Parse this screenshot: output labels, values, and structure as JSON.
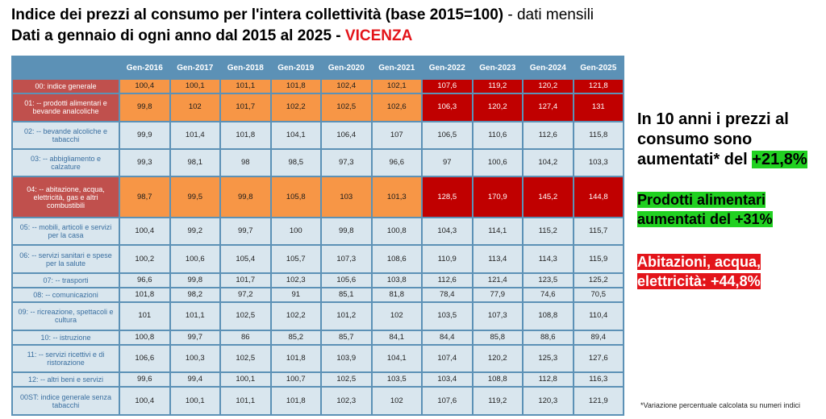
{
  "title": {
    "line1_main": "Indice dei prezzi al consumo per l'intera collettività (base 2015=100)",
    "line1_suffix": " - dati mensili",
    "line2_main": "Dati a gennaio di ogni anno dal 2015 al 2025 - ",
    "line2_city": "VICENZA"
  },
  "chart_data": {
    "type": "table",
    "columns": [
      "Gen-2016",
      "Gen-2017",
      "Gen-2018",
      "Gen-2019",
      "Gen-2020",
      "Gen-2021",
      "Gen-2022",
      "Gen-2023",
      "Gen-2024",
      "Gen-2025"
    ],
    "rows": [
      {
        "label": "00: indice generale",
        "values": [
          "100,4",
          "100,1",
          "101,1",
          "101,8",
          "102,4",
          "102,1",
          "107,6",
          "119,2",
          "120,2",
          "121,8"
        ],
        "highlight": "general"
      },
      {
        "label": "01: -- prodotti alimentari e bevande analcoliche",
        "values": [
          "99,8",
          "102",
          "101,7",
          "102,2",
          "102,5",
          "102,6",
          "106,3",
          "120,2",
          "127,4",
          "131"
        ],
        "highlight": "food"
      },
      {
        "label": "02: -- bevande alcoliche e tabacchi",
        "values": [
          "99,9",
          "101,4",
          "101,8",
          "104,1",
          "106,4",
          "107",
          "106,5",
          "110,6",
          "112,6",
          "115,8"
        ],
        "highlight": "none"
      },
      {
        "label": "03: -- abbigliamento e calzature",
        "values": [
          "99,3",
          "98,1",
          "98",
          "98,5",
          "97,3",
          "96,6",
          "97",
          "100,6",
          "104,2",
          "103,3"
        ],
        "highlight": "none"
      },
      {
        "label": "04: -- abitazione, acqua, elettricità, gas e altri combustibili",
        "values": [
          "98,7",
          "99,5",
          "99,8",
          "105,8",
          "103",
          "101,3",
          "128,5",
          "170,9",
          "145,2",
          "144,8"
        ],
        "highlight": "housing"
      },
      {
        "label": "05: -- mobili, articoli e servizi per la casa",
        "values": [
          "100,4",
          "99,2",
          "99,7",
          "100",
          "99,8",
          "100,8",
          "104,3",
          "114,1",
          "115,2",
          "115,7"
        ],
        "highlight": "none"
      },
      {
        "label": "06: -- servizi sanitari e spese per la salute",
        "values": [
          "100,2",
          "100,6",
          "105,4",
          "105,7",
          "107,3",
          "108,6",
          "110,9",
          "113,4",
          "114,3",
          "115,9"
        ],
        "highlight": "none"
      },
      {
        "label": "07: -- trasporti",
        "values": [
          "96,6",
          "99,8",
          "101,7",
          "102,3",
          "105,6",
          "103,8",
          "112,6",
          "121,4",
          "123,5",
          "125,2"
        ],
        "highlight": "none"
      },
      {
        "label": "08: -- comunicazioni",
        "values": [
          "101,8",
          "98,2",
          "97,2",
          "91",
          "85,1",
          "81,8",
          "78,4",
          "77,9",
          "74,6",
          "70,5"
        ],
        "highlight": "none"
      },
      {
        "label": "09: -- ricreazione, spettacoli e cultura",
        "values": [
          "101",
          "101,1",
          "102,5",
          "102,2",
          "101,2",
          "102",
          "103,5",
          "107,3",
          "108,8",
          "110,4"
        ],
        "highlight": "none"
      },
      {
        "label": "10: -- istruzione",
        "values": [
          "100,8",
          "99,7",
          "86",
          "85,2",
          "85,7",
          "84,1",
          "84,4",
          "85,8",
          "88,6",
          "89,4"
        ],
        "highlight": "none"
      },
      {
        "label": "11: -- servizi ricettivi e di ristorazione",
        "values": [
          "106,6",
          "100,3",
          "102,5",
          "101,8",
          "103,9",
          "104,1",
          "107,4",
          "120,2",
          "125,3",
          "127,6"
        ],
        "highlight": "none"
      },
      {
        "label": "12: -- altri beni e servizi",
        "values": [
          "99,6",
          "99,4",
          "100,1",
          "100,7",
          "102,5",
          "103,5",
          "103,4",
          "108,8",
          "112,8",
          "116,3"
        ],
        "highlight": "none"
      },
      {
        "label": "00ST: indice generale senza tabacchi",
        "values": [
          "100,4",
          "100,1",
          "101,1",
          "101,8",
          "102,3",
          "102",
          "107,6",
          "119,2",
          "120,3",
          "121,9"
        ],
        "highlight": "none"
      }
    ]
  },
  "side": {
    "text1": "In 10 anni i prezzi al consumo sono aumentati* del ",
    "text1_highlight": "+21,8%",
    "text2": "Prodotti alimentari aumentati del +31%",
    "text3": "Abitazioni, acqua, elettricità: +44,8%"
  },
  "footnote": "*Variazione percentuale calcolata su numeri indici",
  "colors": {
    "header_blue": "#5c91b6",
    "cell_light": "#d9e6ee",
    "amber": "#f79646",
    "dark_red": "#c00000",
    "title_red": "#e3141a",
    "green": "#21d121"
  }
}
